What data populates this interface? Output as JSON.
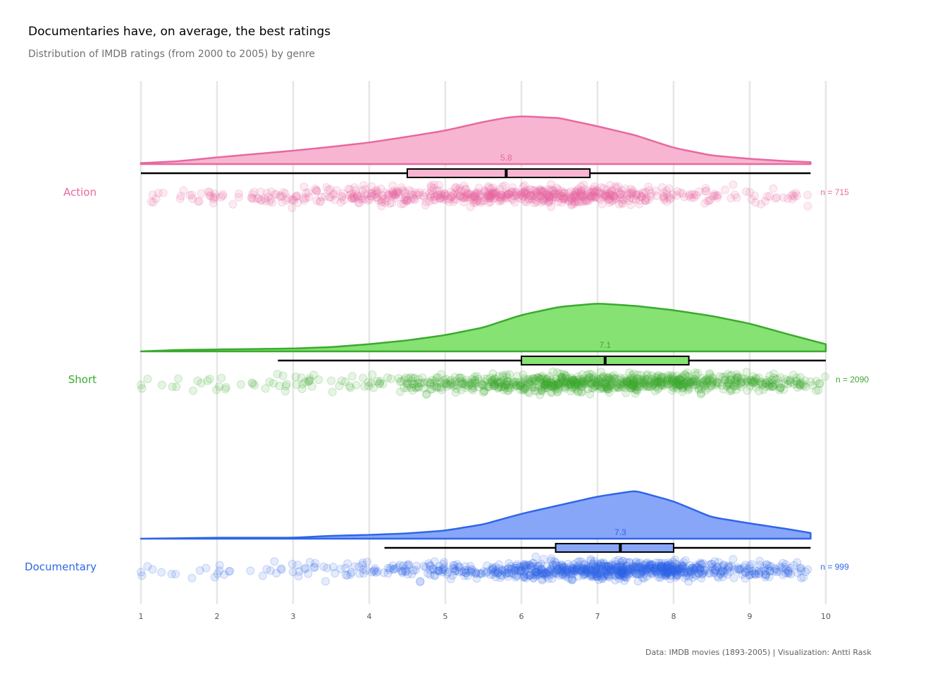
{
  "title": "Documentaries have, on average, the best ratings",
  "subtitle": "Distribution of IMDB ratings (from 2000 to 2005) by genre",
  "caption": "Data: IMDB movies (1893-2005) | Visualization: Antti Rask",
  "chart_data": {
    "type": "raincloud",
    "xlim": [
      1,
      10
    ],
    "x_ticks": [
      "1",
      "2",
      "3",
      "4",
      "5",
      "6",
      "7",
      "8",
      "9",
      "10"
    ],
    "grid": "vertical major gridlines",
    "legend": "none",
    "groups": [
      {
        "name": "Action",
        "color": "#e8689f",
        "fill": "#f7b5d1",
        "n_label": "n = 715",
        "n": 715,
        "median_label": "5.8",
        "box": {
          "whisker_low": 1.0,
          "q1": 4.5,
          "median": 5.8,
          "q3": 6.9,
          "whisker_high": 9.8
        },
        "density": [
          [
            1.0,
            0.02
          ],
          [
            1.5,
            0.06
          ],
          [
            2.0,
            0.14
          ],
          [
            2.5,
            0.21
          ],
          [
            3.0,
            0.28
          ],
          [
            3.5,
            0.36
          ],
          [
            4.0,
            0.45
          ],
          [
            4.5,
            0.57
          ],
          [
            5.0,
            0.7
          ],
          [
            5.5,
            0.88
          ],
          [
            5.8,
            0.97
          ],
          [
            6.0,
            1.0
          ],
          [
            6.5,
            0.96
          ],
          [
            7.0,
            0.79
          ],
          [
            7.5,
            0.6
          ],
          [
            8.0,
            0.34
          ],
          [
            8.5,
            0.18
          ],
          [
            9.0,
            0.11
          ],
          [
            9.5,
            0.06
          ],
          [
            9.8,
            0.04
          ]
        ]
      },
      {
        "name": "Short",
        "color": "#3aaa2e",
        "fill": "#86e272",
        "n_label": "n = 2090",
        "n": 2090,
        "median_label": "7.1",
        "box": {
          "whisker_low": 2.8,
          "q1": 6.0,
          "median": 7.1,
          "q3": 8.2,
          "whisker_high": 10.0
        },
        "density": [
          [
            1.0,
            0.0
          ],
          [
            1.5,
            0.03
          ],
          [
            2.0,
            0.04
          ],
          [
            2.5,
            0.05
          ],
          [
            3.0,
            0.06
          ],
          [
            3.5,
            0.09
          ],
          [
            4.0,
            0.15
          ],
          [
            4.5,
            0.23
          ],
          [
            5.0,
            0.34
          ],
          [
            5.5,
            0.5
          ],
          [
            6.0,
            0.76
          ],
          [
            6.5,
            0.93
          ],
          [
            7.0,
            1.0
          ],
          [
            7.5,
            0.95
          ],
          [
            8.0,
            0.86
          ],
          [
            8.5,
            0.74
          ],
          [
            9.0,
            0.58
          ],
          [
            9.5,
            0.36
          ],
          [
            10.0,
            0.15
          ]
        ]
      },
      {
        "name": "Documentary",
        "color": "#2f66e8",
        "fill": "#87a6f8",
        "n_label": "n = 999",
        "n": 999,
        "median_label": "7.3",
        "box": {
          "whisker_low": 4.2,
          "q1": 6.45,
          "median": 7.3,
          "q3": 8.0,
          "whisker_high": 9.8
        },
        "density": [
          [
            1.0,
            0.0
          ],
          [
            2.0,
            0.02
          ],
          [
            3.0,
            0.02
          ],
          [
            3.5,
            0.06
          ],
          [
            4.0,
            0.08
          ],
          [
            4.5,
            0.11
          ],
          [
            5.0,
            0.17
          ],
          [
            5.5,
            0.3
          ],
          [
            6.0,
            0.52
          ],
          [
            6.5,
            0.7
          ],
          [
            7.0,
            0.88
          ],
          [
            7.5,
            1.0
          ],
          [
            8.0,
            0.78
          ],
          [
            8.5,
            0.45
          ],
          [
            9.0,
            0.32
          ],
          [
            9.5,
            0.2
          ],
          [
            9.8,
            0.12
          ]
        ]
      }
    ]
  }
}
